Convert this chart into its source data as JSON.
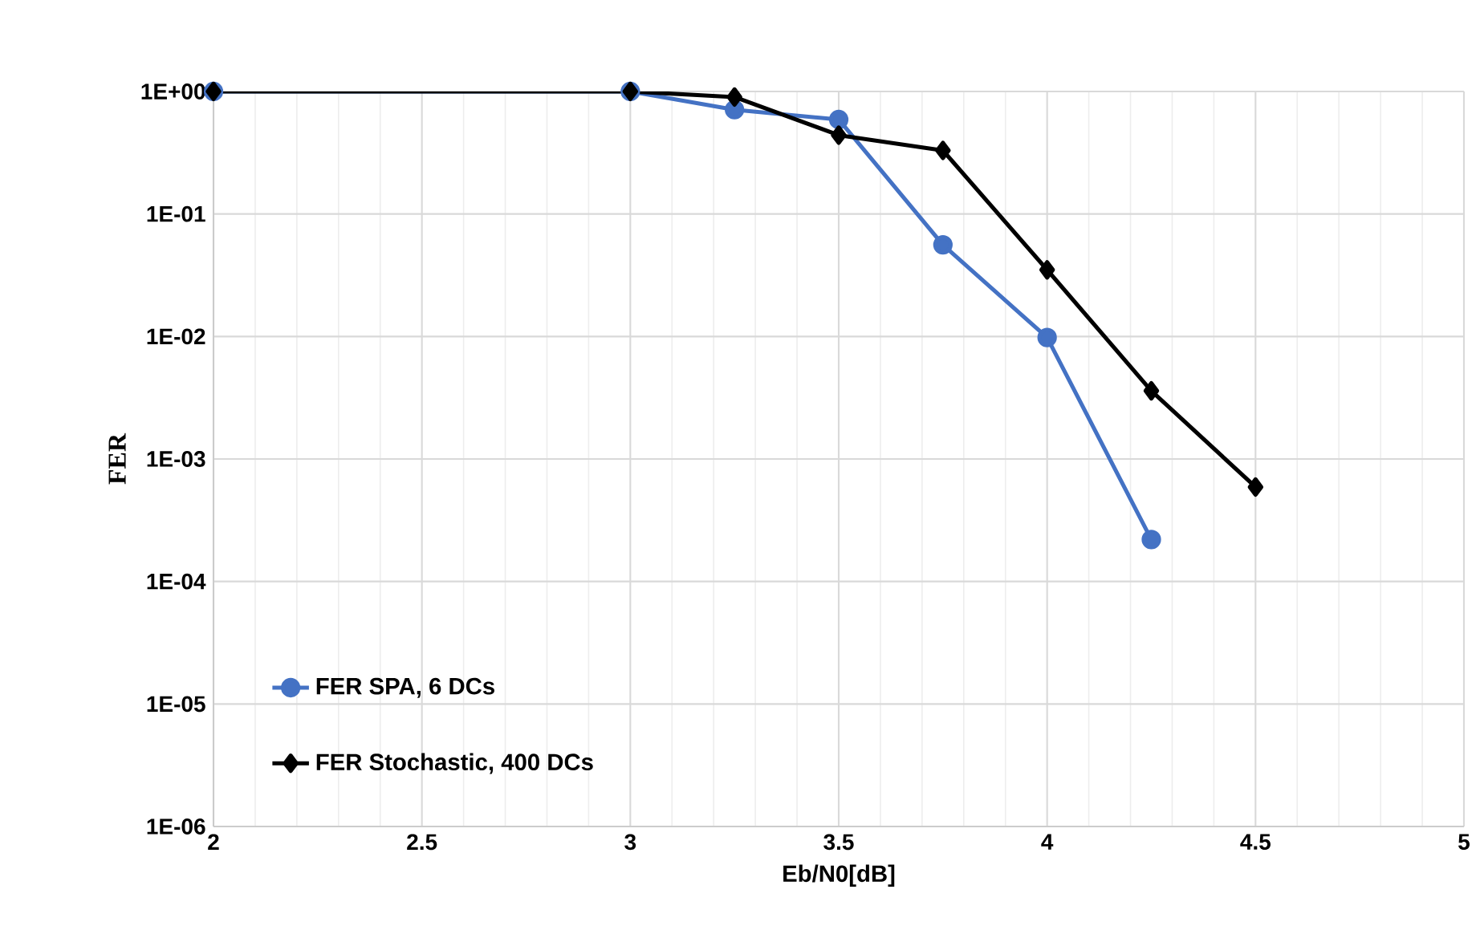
{
  "chart_data": {
    "type": "line",
    "xlabel": "Eb/N0[dB]",
    "ylabel": "FER",
    "log": "y",
    "x": [
      2,
      3,
      3.25,
      3.5,
      3.75,
      4,
      4.25,
      4.5
    ],
    "series": [
      {
        "name": "FER SPA, 6 DCs",
        "color": "#4472c4",
        "marker": "circle",
        "values": [
          1,
          1,
          0.71,
          0.59,
          0.056,
          0.0098,
          0.00022,
          null
        ]
      },
      {
        "name": "FER Stochastic, 400 DCs",
        "color": "#000000",
        "marker": "diamond",
        "values": [
          1,
          1,
          0.9,
          0.44,
          0.33,
          0.035,
          0.0036,
          0.00059
        ]
      }
    ],
    "xlim": [
      2,
      5
    ],
    "xticks": [
      2,
      2.5,
      3,
      3.5,
      4,
      4.5,
      5
    ],
    "ylim": [
      1e-06,
      1
    ],
    "yticks": [
      {
        "value": 1,
        "label": "1E+00"
      },
      {
        "value": 0.1,
        "label": "1E-01"
      },
      {
        "value": 0.01,
        "label": "1E-02"
      },
      {
        "value": 0.001,
        "label": "1E-03"
      },
      {
        "value": 0.0001,
        "label": "1E-04"
      },
      {
        "value": 1e-05,
        "label": "1E-05"
      },
      {
        "value": 1e-06,
        "label": "1E-06"
      }
    ],
    "grid": true,
    "legend": "bottom left",
    "line_style": "solid"
  }
}
